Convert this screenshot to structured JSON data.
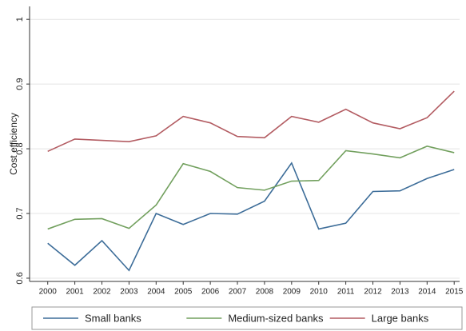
{
  "chart_data": {
    "type": "line",
    "ylabel": "Cost efficiency",
    "x": [
      2000,
      2001,
      2002,
      2003,
      2004,
      2005,
      2006,
      2007,
      2008,
      2009,
      2010,
      2011,
      2012,
      2013,
      2014,
      2015
    ],
    "xlim": [
      1999.33,
      2015.2
    ],
    "xticks": [
      2000,
      2001,
      2002,
      2003,
      2004,
      2005,
      2006,
      2007,
      2008,
      2009,
      2010,
      2011,
      2012,
      2013,
      2014,
      2015
    ],
    "ylim": [
      0.595,
      1.02
    ],
    "yticks": [
      0.6,
      0.7,
      0.8,
      0.9,
      1
    ],
    "grid": true,
    "legend": "bottom",
    "series": [
      {
        "name": "Small banks",
        "color": "#3d6d99",
        "values": [
          0.654,
          0.62,
          0.658,
          0.612,
          0.7,
          0.683,
          0.7,
          0.699,
          0.719,
          0.778,
          0.676,
          0.685,
          0.734,
          0.735,
          0.754,
          0.768
        ]
      },
      {
        "name": "Medium-sized banks",
        "color": "#72a05e",
        "values": [
          0.676,
          0.691,
          0.692,
          0.677,
          0.713,
          0.777,
          0.765,
          0.74,
          0.736,
          0.75,
          0.751,
          0.797,
          0.792,
          0.786,
          0.804,
          0.794
        ]
      },
      {
        "name": "Large banks",
        "color": "#b35c62",
        "values": [
          0.796,
          0.815,
          0.813,
          0.811,
          0.82,
          0.85,
          0.84,
          0.819,
          0.817,
          0.85,
          0.841,
          0.861,
          0.84,
          0.831,
          0.848,
          0.889
        ]
      }
    ]
  }
}
